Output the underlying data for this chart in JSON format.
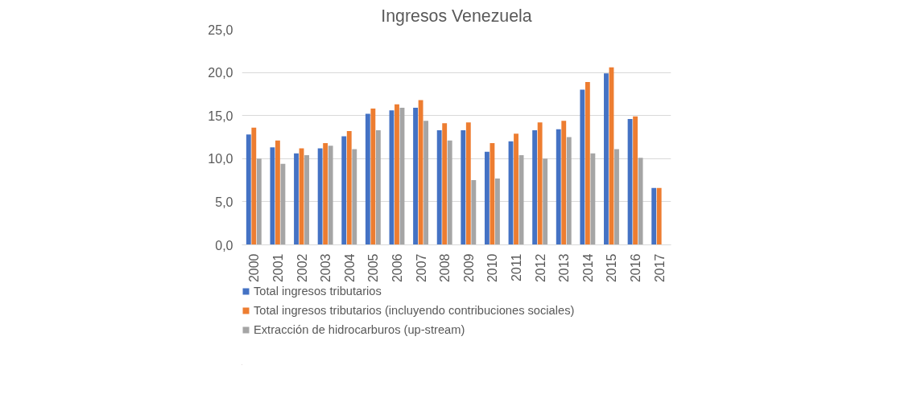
{
  "chart_data": {
    "type": "bar",
    "title": "Ingresos Venezuela",
    "categories": [
      "2000",
      "2001",
      "2002",
      "2003",
      "2004",
      "2005",
      "2006",
      "2007",
      "2008",
      "2009",
      "2010",
      "2011",
      "2012",
      "2013",
      "2014",
      "2015",
      "2016",
      "2017"
    ],
    "series": [
      {
        "name": "Total ingresos tributarios",
        "color": "#4472c4",
        "values": [
          12.8,
          11.3,
          10.6,
          11.2,
          12.6,
          15.2,
          15.6,
          15.9,
          13.3,
          13.3,
          10.8,
          12.0,
          13.3,
          13.4,
          18.0,
          19.9,
          14.6,
          6.6
        ]
      },
      {
        "name": "Total ingresos tributarios (incluyendo contribuciones sociales)",
        "color": "#ed7d31",
        "values": [
          13.6,
          12.1,
          11.2,
          11.8,
          13.2,
          15.8,
          16.3,
          16.8,
          14.1,
          14.2,
          11.8,
          12.9,
          14.2,
          14.4,
          18.9,
          20.6,
          14.9,
          6.6
        ]
      },
      {
        "name": "Extracción de hidrocarburos (up-stream)",
        "color": "#a5a5a5",
        "values": [
          10.0,
          9.4,
          10.4,
          11.5,
          11.1,
          13.3,
          15.9,
          14.4,
          12.1,
          7.5,
          7.7,
          10.4,
          10.0,
          12.5,
          10.6,
          11.1,
          10.1,
          null
        ]
      }
    ],
    "ylim": [
      0,
      25
    ],
    "yticks": [
      {
        "value": 0,
        "label": "0,0"
      },
      {
        "value": 5,
        "label": "5,0"
      },
      {
        "value": 10,
        "label": "10,0"
      },
      {
        "value": 15,
        "label": "15,0"
      },
      {
        "value": 20,
        "label": "20,0"
      },
      {
        "value": 25,
        "label": "25,0"
      }
    ],
    "grid": "y",
    "legend": "bottom"
  }
}
